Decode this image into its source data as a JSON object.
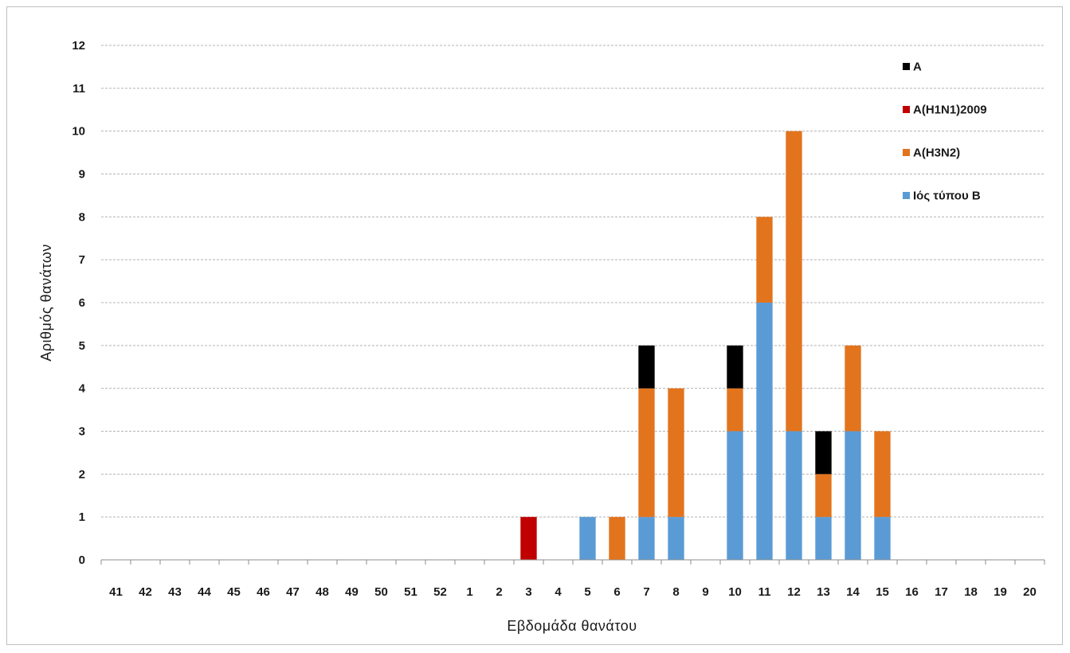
{
  "chart_data": {
    "type": "bar",
    "stacked": true,
    "title": "",
    "xlabel": "Εβδομάδα θανάτου",
    "ylabel": "Αριθμός θανάτων",
    "ylim": [
      0,
      12
    ],
    "yticks": [
      "0",
      "1",
      "2",
      "3",
      "4",
      "5",
      "6",
      "7",
      "8",
      "9",
      "10",
      "11",
      "12"
    ],
    "grid": "horizontal dashed",
    "legend_position": "top-right",
    "categories": [
      "41",
      "42",
      "43",
      "44",
      "45",
      "46",
      "47",
      "48",
      "49",
      "50",
      "51",
      "52",
      "1",
      "2",
      "3",
      "4",
      "5",
      "6",
      "7",
      "8",
      "9",
      "10",
      "11",
      "12",
      "13",
      "14",
      "15",
      "16",
      "17",
      "18",
      "19",
      "20"
    ],
    "series": [
      {
        "name": "Ιός τύπου Β",
        "color": "#5b9bd5",
        "values": [
          0,
          0,
          0,
          0,
          0,
          0,
          0,
          0,
          0,
          0,
          0,
          0,
          0,
          0,
          0,
          0,
          1,
          0,
          1,
          1,
          0,
          3,
          6,
          3,
          1,
          3,
          1,
          0,
          0,
          0,
          0,
          0
        ]
      },
      {
        "name": "Α(Η3Ν2)",
        "color": "#e2741e",
        "values": [
          0,
          0,
          0,
          0,
          0,
          0,
          0,
          0,
          0,
          0,
          0,
          0,
          0,
          0,
          0,
          0,
          0,
          1,
          3,
          3,
          0,
          1,
          2,
          7,
          1,
          2,
          2,
          0,
          0,
          0,
          0,
          0
        ]
      },
      {
        "name": "Α(Η1Ν1)2009",
        "color": "#c00000",
        "values": [
          0,
          0,
          0,
          0,
          0,
          0,
          0,
          0,
          0,
          0,
          0,
          0,
          0,
          0,
          1,
          0,
          0,
          0,
          0,
          0,
          0,
          0,
          0,
          0,
          0,
          0,
          0,
          0,
          0,
          0,
          0,
          0
        ]
      },
      {
        "name": "Α",
        "color": "#000000",
        "values": [
          0,
          0,
          0,
          0,
          0,
          0,
          0,
          0,
          0,
          0,
          0,
          0,
          0,
          0,
          0,
          0,
          0,
          0,
          1,
          0,
          0,
          1,
          0,
          0,
          1,
          0,
          0,
          0,
          0,
          0,
          0,
          0
        ]
      }
    ],
    "legend_order": [
      "Α",
      "Α(Η1Ν1)2009",
      "Α(Η3Ν2)",
      "Ιός τύπου Β"
    ]
  }
}
